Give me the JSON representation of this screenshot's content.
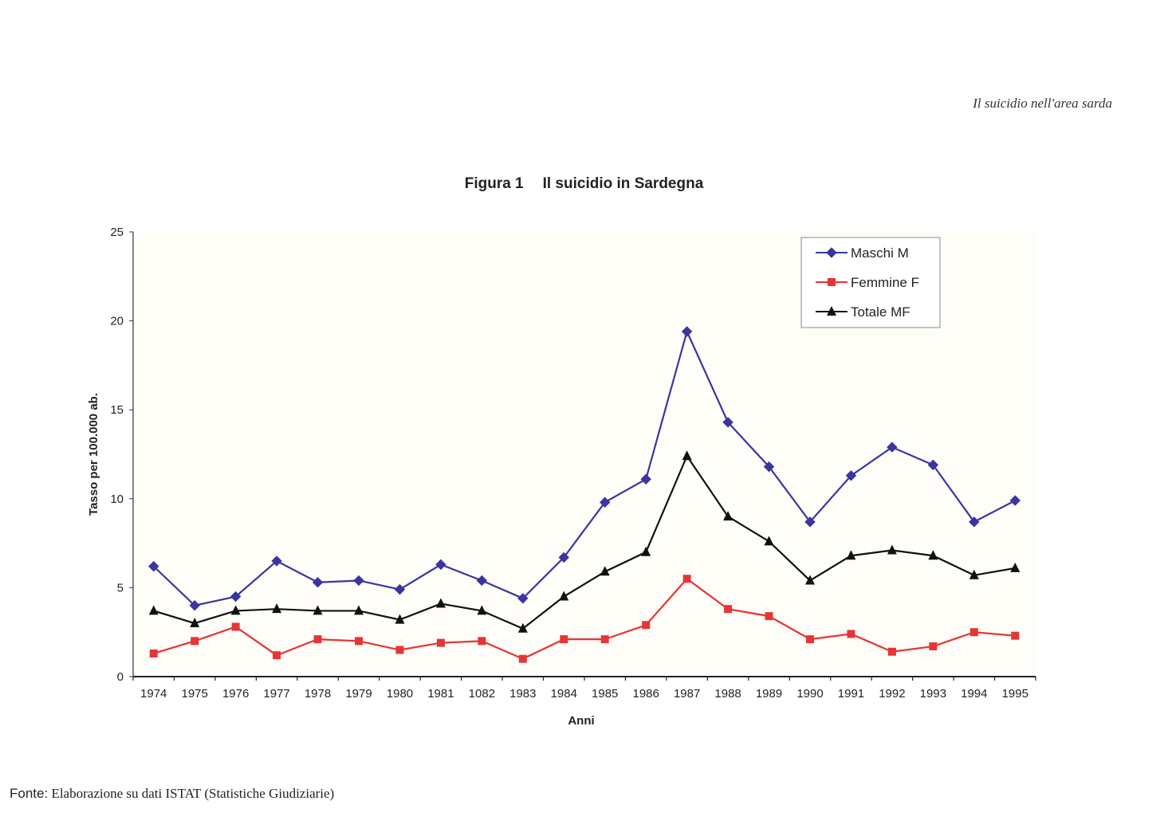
{
  "page": {
    "running_head": "Il suicidio nell'area sarda",
    "figure_number": "Figura 1",
    "figure_title": "Il suicidio in Sardegna",
    "source_label": "Fonte:",
    "source_text": "Elaborazione su dati ISTAT (Statistiche Giudiziarie)"
  },
  "chart_data": {
    "type": "line",
    "title": "Il suicidio in Sardegna",
    "xlabel": "Anni",
    "ylabel": "Tasso per 100.000 ab.",
    "ylim": [
      0,
      25
    ],
    "yticks": [
      0,
      5,
      10,
      15,
      20,
      25
    ],
    "categories": [
      "1974",
      "1975",
      "1976",
      "1977",
      "1978",
      "1979",
      "1980",
      "1981",
      "1082",
      "1983",
      "1984",
      "1985",
      "1986",
      "1987",
      "1988",
      "1989",
      "1990",
      "1991",
      "1992",
      "1993",
      "1994",
      "1995"
    ],
    "legend_position": "top-right",
    "grid": false,
    "series": [
      {
        "name": "Maschi M",
        "marker": "diamond",
        "color": "#3a35a0",
        "values": [
          6.2,
          4.0,
          4.5,
          6.5,
          5.3,
          5.4,
          4.9,
          6.3,
          5.4,
          4.4,
          6.7,
          9.8,
          11.1,
          19.4,
          14.3,
          11.8,
          8.7,
          11.3,
          12.9,
          11.9,
          8.7,
          9.9
        ]
      },
      {
        "name": "Femmine F",
        "marker": "square",
        "color": "#e53535",
        "values": [
          1.3,
          2.0,
          2.8,
          1.2,
          2.1,
          2.0,
          1.5,
          1.9,
          2.0,
          1.0,
          2.1,
          2.1,
          2.9,
          5.5,
          3.8,
          3.4,
          2.1,
          2.4,
          1.4,
          1.7,
          2.5,
          2.3
        ]
      },
      {
        "name": "Totale MF",
        "marker": "triangle",
        "color": "#111111",
        "values": [
          3.7,
          3.0,
          3.7,
          3.8,
          3.7,
          3.7,
          3.2,
          4.1,
          3.7,
          2.7,
          4.5,
          5.9,
          7.0,
          12.4,
          9.0,
          7.6,
          5.4,
          6.8,
          7.1,
          6.8,
          5.7,
          6.1
        ]
      }
    ]
  }
}
